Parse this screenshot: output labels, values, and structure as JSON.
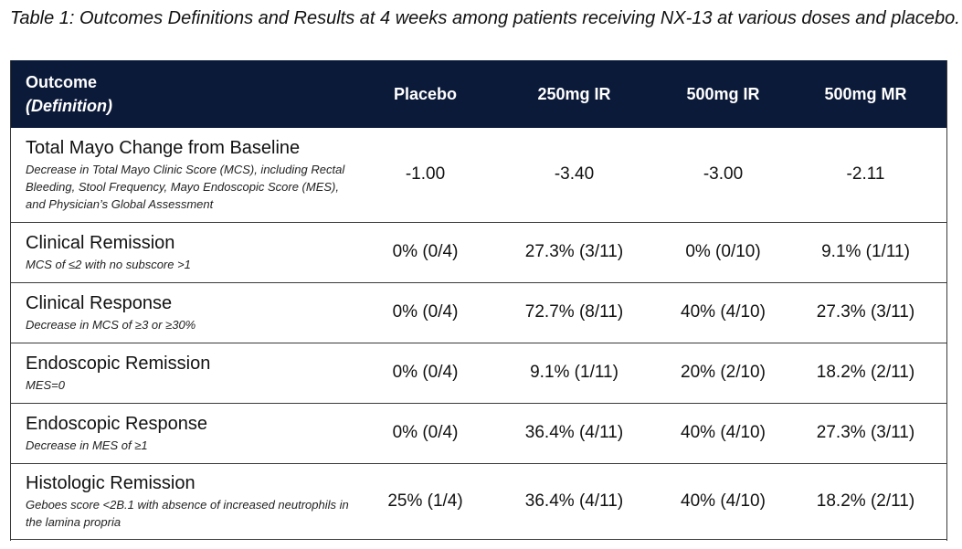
{
  "caption": "Table 1: Outcomes Definitions and Results at 4 weeks among patients receiving NX-13 at various doses and placebo.",
  "header": {
    "outcome": "Outcome",
    "definition": "(Definition)",
    "placebo": "Placebo",
    "ir250": "250mg IR",
    "ir500": "500mg IR",
    "mr500": "500mg MR"
  },
  "rows": [
    {
      "name": "Total Mayo Change from Baseline",
      "definition": "Decrease in Total Mayo Clinic Score (MCS), including Rectal Bleeding, Stool Frequency, Mayo Endoscopic Score (MES), and Physician’s Global Assessment",
      "placebo": "-1.00",
      "ir250": "-3.40",
      "ir500": "-3.00",
      "mr500": "-2.11"
    },
    {
      "name": "Clinical Remission",
      "definition": "MCS of ≤2 with no subscore >1",
      "placebo": "0% (0/4)",
      "ir250": "27.3% (3/11)",
      "ir500": "0% (0/10)",
      "mr500": "9.1% (1/11)"
    },
    {
      "name": "Clinical Response",
      "definition": "Decrease in MCS of ≥3 or ≥30%",
      "placebo": "0% (0/4)",
      "ir250": "72.7% (8/11)",
      "ir500": "40% (4/10)",
      "mr500": "27.3% (3/11)"
    },
    {
      "name": "Endoscopic Remission",
      "definition": "MES=0",
      "placebo": "0% (0/4)",
      "ir250": "9.1% (1/11)",
      "ir500": "20% (2/10)",
      "mr500": "18.2% (2/11)"
    },
    {
      "name": "Endoscopic Response",
      "definition": "Decrease in MES of ≥1",
      "placebo": "0% (0/4)",
      "ir250": "36.4% (4/11)",
      "ir500": "40% (4/10)",
      "mr500": "27.3% (3/11)"
    },
    {
      "name": "Histologic Remission",
      "definition": "Geboes score <2B.1 with absence of increased neutrophils in the lamina propria",
      "placebo": "25% (1/4)",
      "ir250": "36.4% (4/11)",
      "ir500": "40% (4/10)",
      "mr500": "18.2% (2/11)"
    }
  ]
}
